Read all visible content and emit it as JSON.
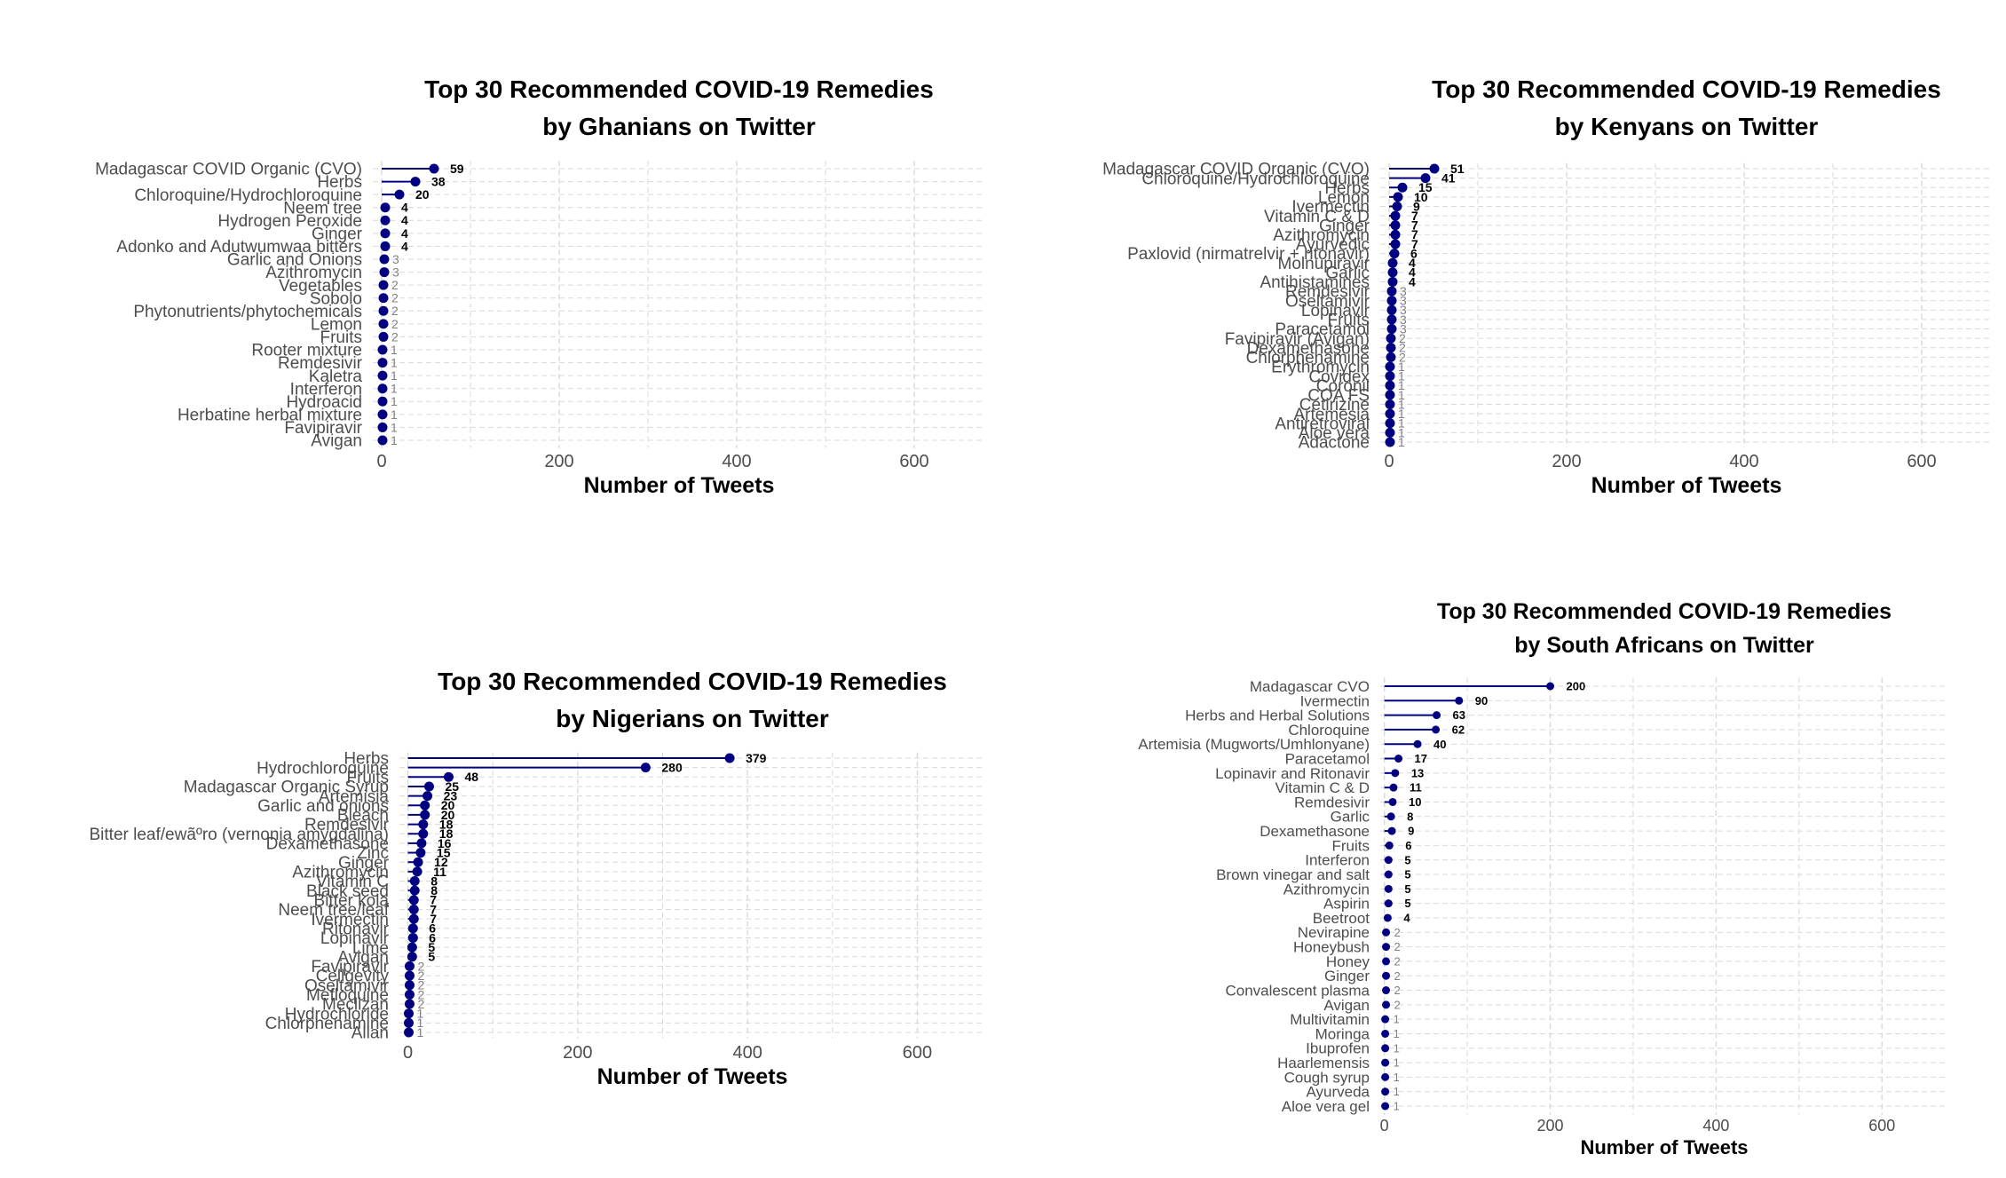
{
  "colors": {
    "point": "#000080",
    "grid": "#d9d9d9",
    "label_strong": "#000000",
    "label_weak": "#808080"
  },
  "chart_data": [
    {
      "type": "lollipop",
      "orientation": "horizontal",
      "title": "Top 30 Recommended COVID-19 Remedies",
      "subtitle": "by Ghanians on Twitter",
      "xlabel": "Number of Tweets",
      "xticks": [
        0,
        200,
        400,
        600
      ],
      "xlim": [
        -10,
        680
      ],
      "grid": true,
      "categories": [
        "Madagascar COVID Organic (CVO)",
        "Herbs",
        "Chloroquine/Hydrochloroquine",
        "Neem tree",
        "Hydrogen Peroxide",
        "Ginger",
        "Adonko and Adutwumwaa bitters",
        "Garlic and Onions",
        "Azithromycin",
        "Vegetables",
        "Sobolo",
        "Phytonutrients/phytochemicals",
        "Lemon",
        "Fruits",
        "Rooter mixture",
        "Remdesivir",
        "Kaletra",
        "Interferon",
        "Hydroacid",
        "Herbatine herbal mixture",
        "Favipiravir",
        "Avigan"
      ],
      "values": [
        59,
        38,
        20,
        4,
        4,
        4,
        4,
        3,
        3,
        2,
        2,
        2,
        2,
        2,
        1,
        1,
        1,
        1,
        1,
        1,
        1,
        1
      ]
    },
    {
      "type": "lollipop",
      "orientation": "horizontal",
      "title": "Top 30 Recommended COVID-19 Remedies",
      "subtitle": "by Kenyans on Twitter",
      "xlabel": "Number of Tweets",
      "xticks": [
        0,
        200,
        400,
        600
      ],
      "xlim": [
        -10,
        680
      ],
      "grid": true,
      "categories": [
        "Madagascar COVID Organic (CVO)",
        "Chloroquine/Hydrochloroquine",
        "Herbs",
        "Lemon",
        "Ivermectin",
        "Vitamin C & D",
        "Ginger",
        "Azithromycin",
        "Ayurvedic",
        "Paxlovid (nirmatrelvir + ritonavir)",
        "Molnupiravir",
        "Garlic",
        "Antihistamines",
        "Remdesivir",
        "Oseltamivir",
        "Lopinavir",
        "Fruits",
        "Paracetamol",
        "Favipiravir (Avigan)",
        "Dexamethasone",
        "Chlorphenamine",
        "Erythromycin",
        "Covidex",
        "Coronil",
        "COA FS",
        "Cetirizine",
        "Artemesia",
        "Antiretroviral",
        "Aloe vera",
        "Adactone"
      ],
      "values": [
        51,
        41,
        15,
        10,
        9,
        7,
        7,
        7,
        7,
        6,
        4,
        4,
        4,
        3,
        3,
        3,
        3,
        3,
        2,
        2,
        2,
        1,
        1,
        1,
        1,
        1,
        1,
        1,
        1,
        1
      ]
    },
    {
      "type": "lollipop",
      "orientation": "horizontal",
      "title": "Top 30 Recommended COVID-19 Remedies",
      "subtitle": "by Nigerians on Twitter",
      "xlabel": "Number of Tweets",
      "xticks": [
        0,
        200,
        400,
        600
      ],
      "xlim": [
        -10,
        680
      ],
      "grid": true,
      "categories": [
        "Herbs",
        "Hydrochloroquine",
        "Fruits",
        "Madagascar Organic Syrup",
        "Artemisia",
        "Garlic and onions",
        "Bleach",
        "Remdesivir",
        "Bitter leaf/ewãºro (vernonia amygdalina)",
        "Dexamethasone",
        "Zinc",
        "Ginger",
        "Azithromycin",
        "Vitamin C",
        "Black seed",
        "Bitter kola",
        "Neem tree/leaf",
        "Ivermectin",
        "Ritonavir",
        "Lopinavir",
        "Lime",
        "Avigan",
        "Favipiravir",
        "Cellgevity",
        "Oseltamivir",
        "Mefloquine",
        "Meclizan",
        "Hydrochloride",
        "Chlorphenamine",
        "Allan"
      ],
      "values": [
        379,
        280,
        48,
        25,
        23,
        20,
        20,
        18,
        18,
        16,
        15,
        12,
        11,
        8,
        8,
        7,
        7,
        7,
        6,
        6,
        5,
        5,
        2,
        2,
        2,
        2,
        2,
        1,
        1,
        1
      ]
    },
    {
      "type": "lollipop",
      "orientation": "horizontal",
      "title": "Top 30 Recommended COVID-19 Remedies",
      "subtitle": "by South Africans on Twitter",
      "xlabel": "Number of Tweets",
      "xticks": [
        0,
        200,
        400,
        600
      ],
      "xlim": [
        -5,
        680
      ],
      "grid": true,
      "categories": [
        "Madagascar CVO",
        "Ivermectin",
        "Herbs and Herbal Solutions",
        "Chloroquine",
        "Artemisia (Mugworts/Umhlonyane)",
        "Paracetamol",
        "Lopinavir and Ritonavir",
        "Vitamin C & D",
        "Remdesivir",
        "Garlic",
        "Dexamethasone",
        "Fruits",
        "Interferon",
        "Brown vinegar and salt",
        "Azithromycin",
        "Aspirin",
        "Beetroot",
        "Nevirapine",
        "Honeybush",
        "Honey",
        "Ginger",
        "Convalescent plasma",
        "Avigan",
        "Multivitamin",
        "Moringa",
        "Ibuprofen",
        "Haarlemensis",
        "Cough syrup",
        "Ayurveda",
        "Aloe vera gel"
      ],
      "values": [
        200,
        90,
        63,
        62,
        40,
        17,
        13,
        11,
        10,
        8,
        9,
        6,
        5,
        5,
        5,
        5,
        4,
        2,
        2,
        2,
        2,
        2,
        2,
        1,
        1,
        1,
        1,
        1,
        1,
        1
      ]
    }
  ]
}
